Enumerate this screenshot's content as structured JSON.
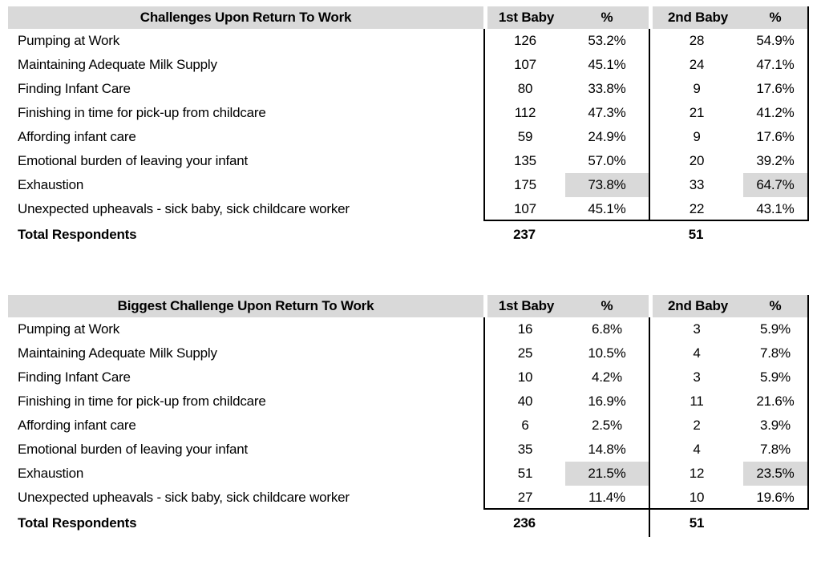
{
  "colors": {
    "header_bg": "#d9d9d9",
    "highlight_bg": "#d9d9d9",
    "border": "#000000",
    "text": "#000000",
    "page_bg": "#ffffff"
  },
  "tables": [
    {
      "title": "Challenges Upon Return To Work",
      "col1": "1st Baby",
      "col1_pct": "%",
      "col2": "2nd Baby",
      "col2_pct": "%",
      "rows": [
        {
          "label": "Pumping at Work",
          "n1": "126",
          "p1": "53.2%",
          "n2": "28",
          "p2": "54.9%"
        },
        {
          "label": "Maintaining Adequate Milk Supply",
          "n1": "107",
          "p1": "45.1%",
          "n2": "24",
          "p2": "47.1%"
        },
        {
          "label": "Finding Infant Care",
          "n1": "80",
          "p1": "33.8%",
          "n2": "9",
          "p2": "17.6%"
        },
        {
          "label": "Finishing in time for pick-up from childcare",
          "n1": "112",
          "p1": "47.3%",
          "n2": "21",
          "p2": "41.2%"
        },
        {
          "label": "Affording infant care",
          "n1": "59",
          "p1": "24.9%",
          "n2": "9",
          "p2": "17.6%"
        },
        {
          "label": "Emotional burden of leaving your infant",
          "n1": "135",
          "p1": "57.0%",
          "n2": "20",
          "p2": "39.2%"
        },
        {
          "label": "Exhaustion",
          "n1": "175",
          "p1": "73.8%",
          "n2": "33",
          "p2": "64.7%",
          "highlight": true
        },
        {
          "label": "Unexpected upheavals - sick baby, sick childcare worker",
          "n1": "107",
          "p1": "45.1%",
          "n2": "22",
          "p2": "43.1%"
        }
      ],
      "total": {
        "label": "Total Respondents",
        "n1": "237",
        "n2": "51"
      }
    },
    {
      "title": "Biggest Challenge Upon Return To Work",
      "col1": "1st Baby",
      "col1_pct": "%",
      "col2": "2nd Baby",
      "col2_pct": "%",
      "rows": [
        {
          "label": "Pumping at Work",
          "n1": "16",
          "p1": "6.8%",
          "n2": "3",
          "p2": "5.9%"
        },
        {
          "label": "Maintaining Adequate Milk Supply",
          "n1": "25",
          "p1": "10.5%",
          "n2": "4",
          "p2": "7.8%"
        },
        {
          "label": "Finding Infant Care",
          "n1": "10",
          "p1": "4.2%",
          "n2": "3",
          "p2": "5.9%"
        },
        {
          "label": "Finishing in time for pick-up from childcare",
          "n1": "40",
          "p1": "16.9%",
          "n2": "11",
          "p2": "21.6%"
        },
        {
          "label": "Affording infant care",
          "n1": "6",
          "p1": "2.5%",
          "n2": "2",
          "p2": "3.9%"
        },
        {
          "label": "Emotional burden of leaving your infant",
          "n1": "35",
          "p1": "14.8%",
          "n2": "4",
          "p2": "7.8%"
        },
        {
          "label": "Exhaustion",
          "n1": "51",
          "p1": "21.5%",
          "n2": "12",
          "p2": "23.5%",
          "highlight": true
        },
        {
          "label": "Unexpected upheavals - sick baby, sick childcare worker",
          "n1": "27",
          "p1": "11.4%",
          "n2": "10",
          "p2": "19.6%"
        }
      ],
      "total": {
        "label": "Total Respondents",
        "n1": "236",
        "n2": "51"
      }
    }
  ],
  "chart_data": [
    {
      "type": "table",
      "title": "Challenges Upon Return To Work",
      "columns": [
        "Challenges Upon Return To Work",
        "1st Baby",
        "%",
        "2nd Baby",
        "%"
      ],
      "rows": [
        [
          "Pumping at Work",
          126,
          "53.2%",
          28,
          "54.9%"
        ],
        [
          "Maintaining Adequate Milk Supply",
          107,
          "45.1%",
          24,
          "47.1%"
        ],
        [
          "Finding Infant Care",
          80,
          "33.8%",
          9,
          "17.6%"
        ],
        [
          "Finishing in time for pick-up from childcare",
          112,
          "47.3%",
          21,
          "41.2%"
        ],
        [
          "Affording infant care",
          59,
          "24.9%",
          9,
          "17.6%"
        ],
        [
          "Emotional burden of leaving your infant",
          135,
          "57.0%",
          20,
          "39.2%"
        ],
        [
          "Exhaustion",
          175,
          "73.8%",
          33,
          "64.7%"
        ],
        [
          "Unexpected upheavals - sick baby, sick childcare worker",
          107,
          "45.1%",
          22,
          "43.1%"
        ]
      ],
      "totals_row": [
        "Total Respondents",
        237,
        "",
        51,
        ""
      ],
      "highlighted_cells": [
        [
          "Exhaustion",
          "73.8%"
        ],
        [
          "Exhaustion",
          "64.7%"
        ]
      ]
    },
    {
      "type": "table",
      "title": "Biggest Challenge Upon Return To Work",
      "columns": [
        "Biggest Challenge Upon Return To Work",
        "1st Baby",
        "%",
        "2nd Baby",
        "%"
      ],
      "rows": [
        [
          "Pumping at Work",
          16,
          "6.8%",
          3,
          "5.9%"
        ],
        [
          "Maintaining Adequate Milk Supply",
          25,
          "10.5%",
          4,
          "7.8%"
        ],
        [
          "Finding Infant Care",
          10,
          "4.2%",
          3,
          "5.9%"
        ],
        [
          "Finishing in time for pick-up from childcare",
          40,
          "16.9%",
          11,
          "21.6%"
        ],
        [
          "Affording infant care",
          6,
          "2.5%",
          2,
          "3.9%"
        ],
        [
          "Emotional burden of leaving your infant",
          35,
          "14.8%",
          4,
          "7.8%"
        ],
        [
          "Exhaustion",
          51,
          "21.5%",
          12,
          "23.5%"
        ],
        [
          "Unexpected upheavals - sick baby, sick childcare worker",
          27,
          "11.4%",
          10,
          "19.6%"
        ]
      ],
      "totals_row": [
        "Total Respondents",
        236,
        "",
        51,
        ""
      ],
      "highlighted_cells": [
        [
          "Exhaustion",
          "21.5%"
        ],
        [
          "Exhaustion",
          "23.5%"
        ]
      ]
    }
  ]
}
